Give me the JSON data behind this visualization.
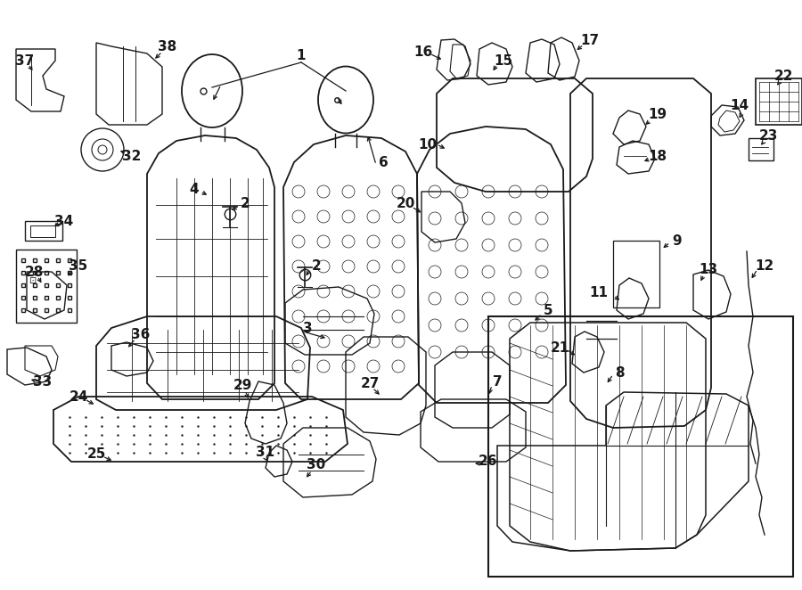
{
  "bg_color": "#ffffff",
  "line_color": "#1a1a1a",
  "fig_width": 9.0,
  "fig_height": 6.62,
  "dpi": 100,
  "seat_lw": 1.3,
  "part_lw": 1.0,
  "small_lw": 0.9,
  "label_fontsize": 11,
  "label_fontweight": "bold"
}
